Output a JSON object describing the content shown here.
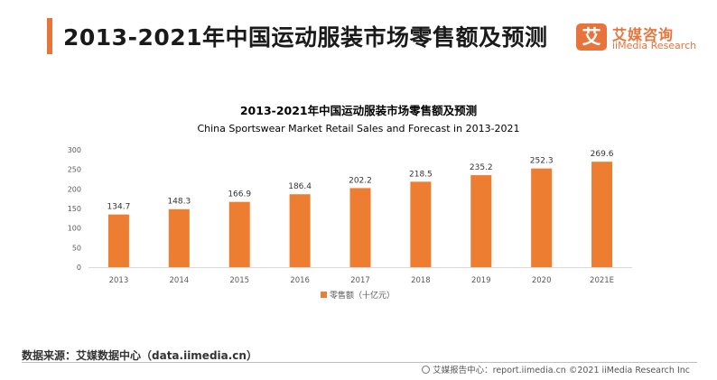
{
  "header": {
    "title": "2013-2021年中国运动服装市场零售额及预测"
  },
  "logo": {
    "mark": "艾",
    "name_cn": "艾媒咨询",
    "name_en": "iiMedia Research"
  },
  "source": "数据来源：艾媒数据中心（data.iimedia.cn）",
  "footer": {
    "text": "艾媒报告中心：report.iimedia.cn   ©2021  iiMedia Research  Inc"
  },
  "colors": {
    "accent": "#e8743b",
    "bar": "#ed7d31",
    "axis_text": "#595959"
  },
  "chart_data": {
    "type": "bar",
    "title": "2013-2021年中国运动服装市场零售额及预测",
    "subtitle": "China Sportswear Market Retail Sales and Forecast  in 2013-2021",
    "categories": [
      "2013",
      "2014",
      "2015",
      "2016",
      "2017",
      "2018",
      "2019",
      "2020",
      "2021E"
    ],
    "series": [
      {
        "name": "零售额（十亿元）",
        "values": [
          134.7,
          148.3,
          166.9,
          186.4,
          202.2,
          218.5,
          235.2,
          252.3,
          269.6
        ]
      }
    ],
    "ylim": [
      0,
      300
    ],
    "yticks": [
      0,
      50,
      100,
      150,
      200,
      250,
      300
    ],
    "grid": false,
    "legend": "bottom",
    "data_labels": true
  }
}
